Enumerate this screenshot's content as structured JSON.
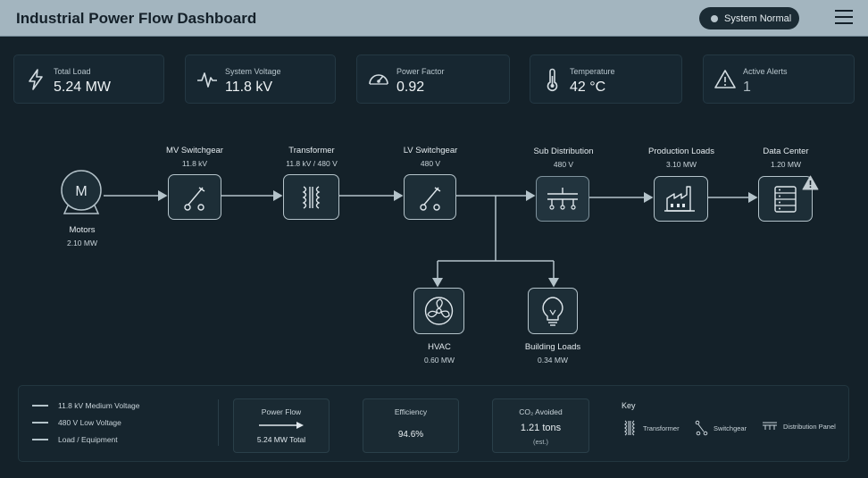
{
  "header": {
    "title": "Industrial Power Flow Dashboard",
    "status_label": "System Normal"
  },
  "cards": [
    {
      "label": "Total Load",
      "value": "5.24 MW",
      "icon": "lightning-icon"
    },
    {
      "label": "System Voltage",
      "value": "11.8 kV",
      "icon": "waveform-icon"
    },
    {
      "label": "Power Factor",
      "value": "0.92",
      "icon": "gauge-icon"
    },
    {
      "label": "Temperature",
      "value": "42 °C",
      "icon": "thermometer-icon"
    },
    {
      "label": "Active Alerts",
      "value": "1",
      "icon": "warning-icon"
    }
  ],
  "nodes": {
    "motors": {
      "name": "Motors",
      "value": "2.10 MW"
    },
    "mv_switchgear": {
      "name": "MV Switchgear",
      "value": "11.8 kV"
    },
    "transformer": {
      "name": "Transformer",
      "value": "11.8 kV / 480 V"
    },
    "lv_switchgear": {
      "name": "LV Switchgear",
      "value": "480 V"
    },
    "sub_distribution": {
      "name": "Sub Distribution",
      "value": "480 V"
    },
    "production_loads": {
      "name": "Production Loads",
      "value": "3.10 MW"
    },
    "data_center": {
      "name": "Data Center",
      "value": "1.20 MW"
    },
    "hvac": {
      "name": "HVAC",
      "value": "0.60 MW"
    },
    "building_loads": {
      "name": "Building Loads",
      "value": "0.34 MW"
    }
  },
  "motor_symbol": "M",
  "legend": [
    {
      "label": "11.8 kV Medium Voltage"
    },
    {
      "label": "480 V Low Voltage"
    },
    {
      "label": "Load / Equipment"
    }
  ],
  "stats": {
    "power_flow": {
      "label": "Power Flow",
      "value": "5.24 MW Total"
    },
    "efficiency": {
      "label": "Efficiency",
      "value": "94.6%"
    },
    "co2": {
      "label": "CO₂ Avoided",
      "value": "1.21 tons",
      "note": "(est.)"
    }
  },
  "key": {
    "title": "Key",
    "items": [
      {
        "label": "Transformer",
        "icon": "transformer-icon"
      },
      {
        "label": "Switchgear",
        "icon": "switchgear-icon"
      },
      {
        "label": "Distribution Panel",
        "icon": "distribution-panel-icon"
      }
    ]
  },
  "colors": {
    "background": "#142129",
    "header": "#a3b5bf",
    "line": "#b4c3ca"
  }
}
